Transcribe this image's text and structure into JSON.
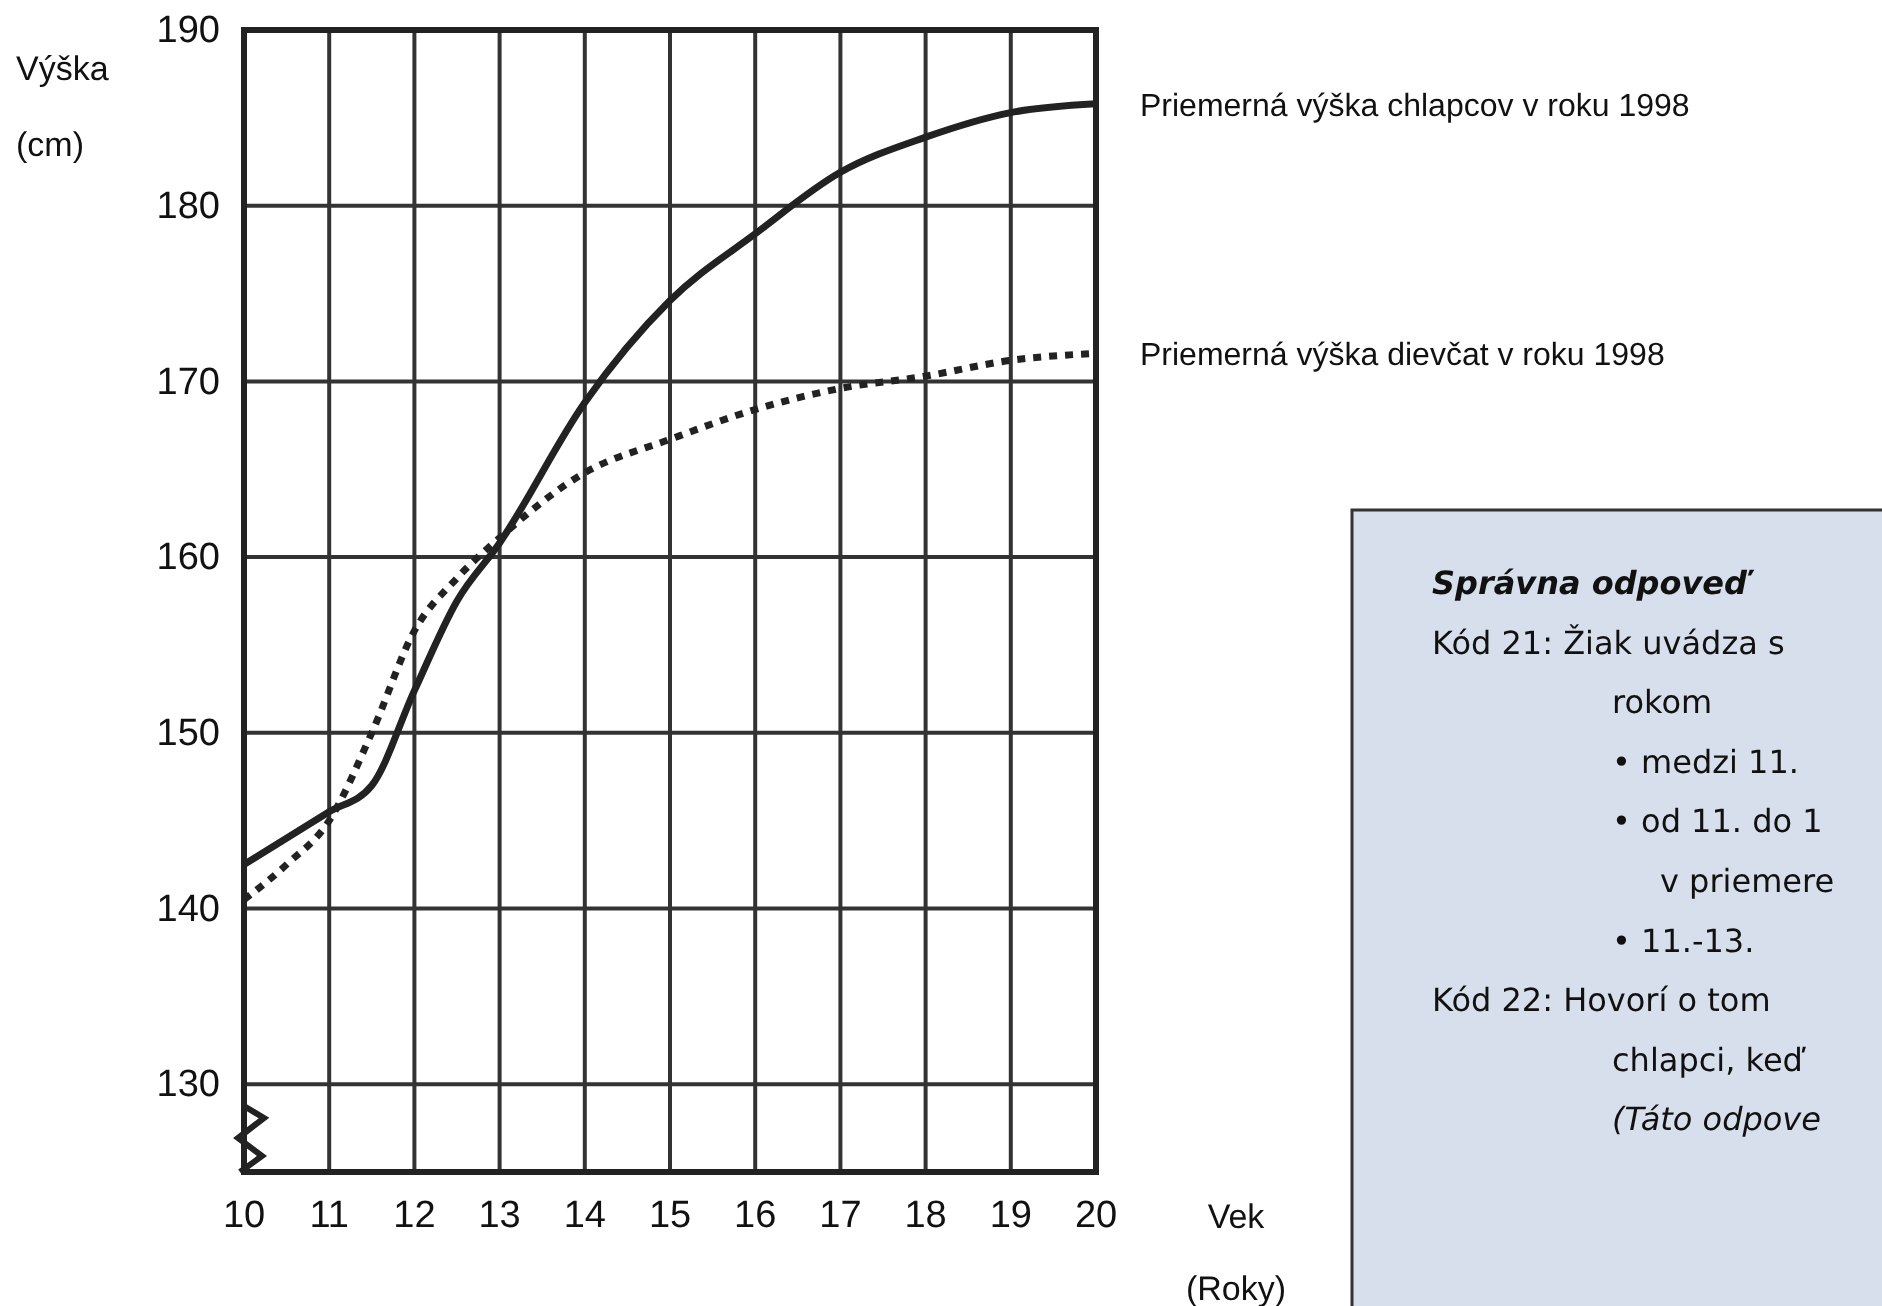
{
  "chart_data": {
    "type": "line",
    "xlabel": "Vek (Roky)",
    "ylabel": "Výška (cm)",
    "xlim": [
      10,
      20
    ],
    "xticks": [
      10,
      11,
      12,
      13,
      14,
      15,
      16,
      17,
      18,
      19,
      20
    ],
    "ylim": [
      125,
      190
    ],
    "yticks": [
      130,
      140,
      150,
      160,
      170,
      180,
      190
    ],
    "grid": true,
    "series": [
      {
        "name": "Priemerná výška chlapcov v roku 1998",
        "color": "#222222",
        "line_style": "solid",
        "x": [
          10,
          11,
          11.5,
          12,
          12.5,
          13,
          14,
          15,
          16,
          17,
          18,
          19,
          20
        ],
        "values": [
          142.5,
          145.5,
          147,
          152.4,
          157.5,
          160.8,
          168.8,
          174.6,
          178.4,
          181.9,
          183.9,
          185.3,
          185.8
        ]
      },
      {
        "name": "Priemerná výška dievčat v roku 1998",
        "color": "#222222",
        "line_style": "dotted",
        "x": [
          10,
          10.5,
          11,
          11.5,
          12,
          12.5,
          13,
          14,
          15,
          16,
          17,
          18,
          19,
          20
        ],
        "values": [
          140.5,
          142.5,
          145,
          150,
          155.8,
          158.8,
          161.1,
          164.8,
          166.7,
          168.4,
          169.6,
          170.3,
          171.2,
          171.6
        ]
      }
    ],
    "annotations": [
      "Správna odpoveď",
      "Kód 21: Žiak uvádza s",
      "rokom",
      "• medzi 11.",
      "• od 11. do 1",
      "v priemere",
      "• 11.-13.",
      "Kód 22: Hovorí o tom",
      "chlapci, keď",
      "(Táto odpove"
    ]
  }
}
